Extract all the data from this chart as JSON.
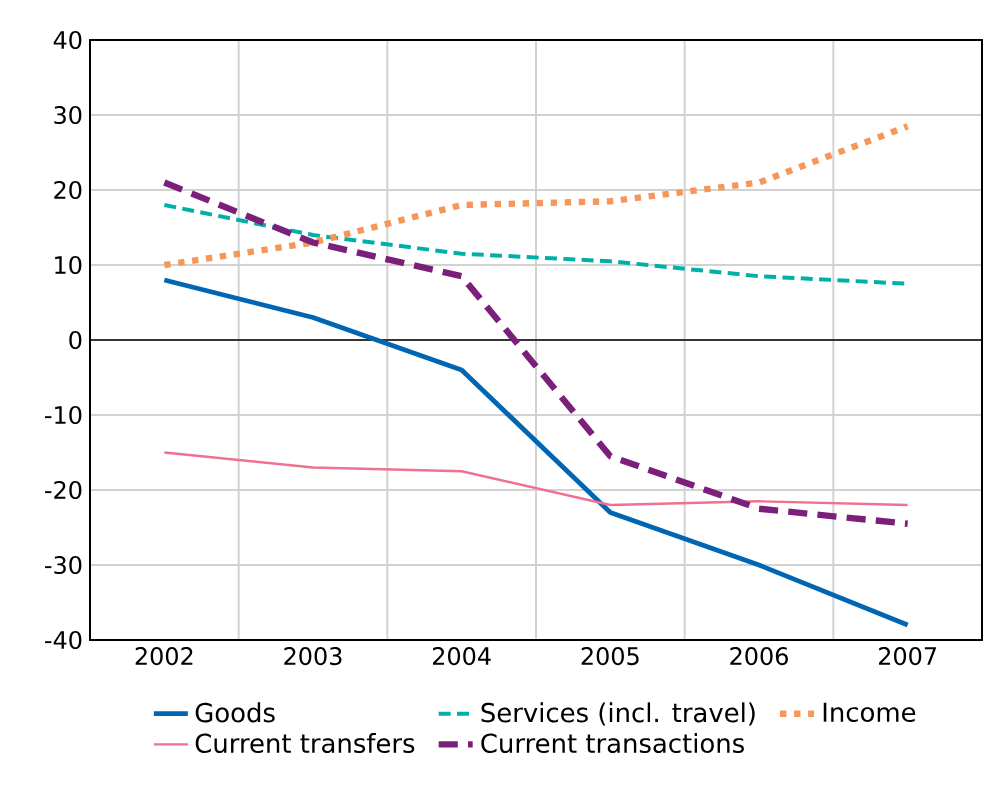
{
  "chart_data": {
    "type": "line",
    "categories": [
      "2002",
      "2003",
      "2004",
      "2005",
      "2006",
      "2007"
    ],
    "ylim": [
      -40,
      40
    ],
    "yticks": [
      -40,
      -30,
      -20,
      -10,
      0,
      10,
      20,
      30,
      40
    ],
    "grid": true,
    "legend": "bottom",
    "ref_lines": [
      {
        "axis": "y",
        "value": 0,
        "color": "#000000"
      }
    ],
    "series": [
      {
        "name": "Goods",
        "color": "#0066b3",
        "line_style": "solid",
        "values": [
          8,
          3,
          -4,
          -23,
          -30,
          -38
        ]
      },
      {
        "name": "Services (incl. travel)",
        "color": "#00b0a8",
        "line_style": "dashed",
        "values": [
          18,
          14,
          11.5,
          10.5,
          8.5,
          7.5
        ]
      },
      {
        "name": "Income",
        "color": "#f5975a",
        "line_style": "dotted",
        "values": [
          10,
          13,
          18,
          18.5,
          21,
          28.5
        ]
      },
      {
        "name": "Current transfers",
        "color": "#f07090",
        "line_style": "solid",
        "values": [
          -15,
          -17,
          -17.5,
          -22,
          -21.5,
          -22
        ]
      },
      {
        "name": "Current transactions",
        "color": "#7b1f7b",
        "line_style": "dashed",
        "values": [
          21,
          13,
          8.5,
          -15.5,
          -22.5,
          -24.5
        ]
      }
    ]
  }
}
